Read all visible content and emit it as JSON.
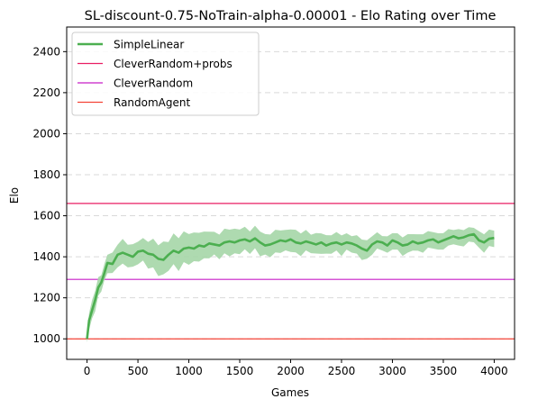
{
  "chart_data": {
    "type": "line",
    "title": "SL-discount-0.75-NoTrain-alpha-0.00001 - Elo Rating over Time",
    "xlabel": "Games",
    "ylabel": "Elo",
    "xlim": [
      -200,
      4200
    ],
    "ylim": [
      900,
      2520
    ],
    "xticks": [
      0,
      500,
      1000,
      1500,
      2000,
      2500,
      3000,
      3500,
      4000
    ],
    "xtick_labels": [
      "0",
      "500",
      "1000",
      "1500",
      "2000",
      "2500",
      "3000",
      "3500",
      "4000"
    ],
    "yticks": [
      1000,
      1200,
      1400,
      1600,
      1800,
      2000,
      2200,
      2400
    ],
    "ytick_labels": [
      "1000",
      "1200",
      "1400",
      "1600",
      "1800",
      "2000",
      "2200",
      "2400"
    ],
    "grid": "horizontal dashed",
    "legend_position": "upper left",
    "series": [
      {
        "name": "SimpleLinear",
        "color": "#4caf50",
        "band_color": "#a5d6a7",
        "x": [
          0,
          20,
          50,
          80,
          110,
          140,
          170,
          200,
          250,
          300,
          350,
          400,
          450,
          500,
          550,
          600,
          650,
          700,
          750,
          800,
          850,
          900,
          950,
          1000,
          1050,
          1100,
          1150,
          1200,
          1250,
          1300,
          1350,
          1400,
          1450,
          1500,
          1550,
          1600,
          1650,
          1700,
          1750,
          1800,
          1850,
          1900,
          1950,
          2000,
          2050,
          2100,
          2150,
          2200,
          2250,
          2300,
          2350,
          2400,
          2450,
          2500,
          2550,
          2600,
          2650,
          2700,
          2750,
          2800,
          2850,
          2900,
          2950,
          3000,
          3050,
          3100,
          3150,
          3200,
          3250,
          3300,
          3350,
          3400,
          3450,
          3500,
          3550,
          3600,
          3650,
          3700,
          3750,
          3800,
          3850,
          3900,
          3950,
          4000
        ],
        "y": [
          1000,
          1090,
          1140,
          1190,
          1250,
          1275,
          1320,
          1370,
          1365,
          1410,
          1420,
          1410,
          1400,
          1425,
          1430,
          1415,
          1410,
          1390,
          1385,
          1410,
          1430,
          1420,
          1440,
          1445,
          1440,
          1455,
          1450,
          1465,
          1460,
          1455,
          1470,
          1475,
          1470,
          1480,
          1485,
          1475,
          1490,
          1470,
          1455,
          1460,
          1470,
          1480,
          1475,
          1485,
          1470,
          1465,
          1475,
          1468,
          1460,
          1470,
          1455,
          1465,
          1470,
          1460,
          1470,
          1465,
          1455,
          1440,
          1430,
          1460,
          1475,
          1470,
          1455,
          1480,
          1470,
          1455,
          1460,
          1475,
          1465,
          1470,
          1480,
          1485,
          1470,
          1480,
          1490,
          1500,
          1490,
          1495,
          1505,
          1510,
          1480,
          1470,
          1488,
          1492
        ],
        "band": [
          20,
          40,
          45,
          50,
          45,
          40,
          40,
          45,
          50,
          55,
          60,
          55,
          55,
          55,
          55,
          65,
          70,
          75,
          80,
          70,
          75,
          80,
          75,
          75,
          70,
          70,
          65,
          65,
          55,
          60,
          60,
          65,
          60,
          60,
          55,
          55,
          55,
          60,
          50,
          55,
          55,
          55,
          50,
          55,
          55,
          55,
          50,
          45,
          50,
          50,
          45,
          45,
          45,
          50,
          40,
          40,
          45,
          50,
          45,
          45,
          40,
          35,
          40,
          40,
          40,
          45,
          45,
          40,
          40,
          45,
          40,
          40,
          40,
          40,
          40,
          35,
          40,
          40,
          35,
          35,
          40,
          45,
          40,
          40
        ]
      },
      {
        "name": "CleverRandom+probs",
        "color": "#e91e63",
        "value": 1660
      },
      {
        "name": "CleverRandom",
        "color": "#c71dc7",
        "value": 1290
      },
      {
        "name": "RandomAgent",
        "color": "#f44336",
        "value": 1000
      }
    ]
  }
}
